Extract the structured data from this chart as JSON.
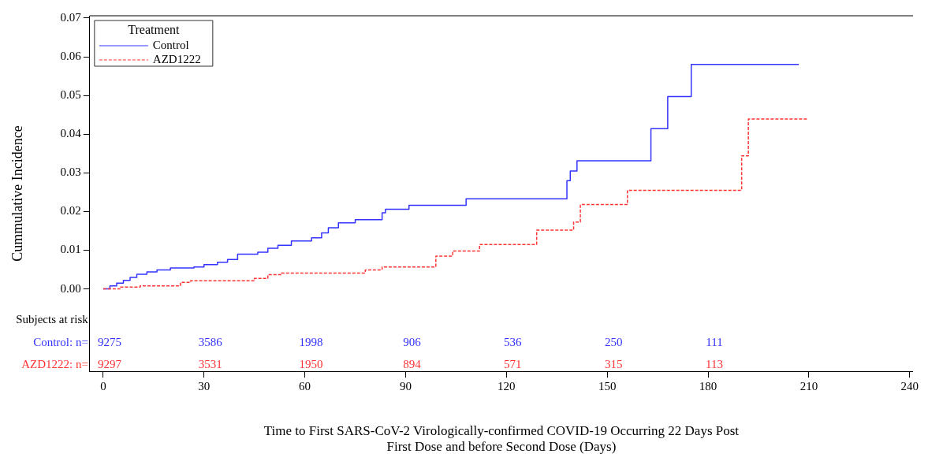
{
  "chart_data": {
    "type": "step",
    "xlabel": "Time to First SARS-CoV-2 Virologically-confirmed COVID-19 Occurring 22 Days Post First Dose and before Second Dose (Days)",
    "ylabel": "Cummulative Incidence",
    "legend_title": "Treatment",
    "legend": "top left",
    "grid": false,
    "xlim": [
      -4,
      241
    ],
    "xticks": [
      0,
      30,
      60,
      90,
      120,
      150,
      180,
      210,
      240
    ],
    "ylim": [
      -0.0213,
      0.0706
    ],
    "yticks": [
      {
        "value": 0,
        "label": "0.00"
      },
      0.01,
      0.02,
      0.03,
      0.04,
      0.05,
      0.06,
      0.07
    ],
    "series": [
      {
        "name": "Control",
        "color": "#3333ff",
        "line_style": "solid",
        "x": [
          0,
          2,
          4,
          6,
          8,
          10,
          13,
          16,
          20,
          27,
          30,
          34,
          37,
          40,
          46,
          49,
          52,
          56,
          62,
          65,
          67,
          70,
          75,
          83,
          84,
          91,
          108,
          138,
          139,
          141,
          163,
          168,
          175,
          207
        ],
        "values": [
          0,
          0.0008,
          0.0015,
          0.0022,
          0.003,
          0.0038,
          0.0044,
          0.0049,
          0.0054,
          0.0057,
          0.0063,
          0.0069,
          0.0076,
          0.009,
          0.0095,
          0.0105,
          0.0113,
          0.0124,
          0.0132,
          0.0145,
          0.0158,
          0.0171,
          0.0179,
          0.0197,
          0.0206,
          0.0216,
          0.0233,
          0.028,
          0.0305,
          0.0331,
          0.0414,
          0.0497,
          0.058,
          0.058
        ]
      },
      {
        "name": "AZD1222",
        "color": "#ff3333",
        "line_style": "dashed",
        "x": [
          0,
          5,
          11,
          23,
          26,
          45,
          49,
          53,
          78,
          83,
          99,
          104,
          112,
          129,
          140,
          142,
          156,
          190,
          192,
          209.5
        ],
        "values": [
          0,
          0.0005,
          0.0008,
          0.0017,
          0.0021,
          0.0027,
          0.0037,
          0.0041,
          0.0049,
          0.0057,
          0.0085,
          0.0098,
          0.0115,
          0.0152,
          0.0173,
          0.0218,
          0.0255,
          0.0344,
          0.0439,
          0.0439
        ]
      }
    ],
    "annotations": [
      "Subjects at risk",
      "Control: n=",
      "9275",
      "3586",
      "1998",
      "906",
      "536",
      "250",
      "111",
      "AZD1222: n=",
      "9297",
      "3531",
      "1950",
      "894",
      "571",
      "315",
      "113"
    ]
  }
}
